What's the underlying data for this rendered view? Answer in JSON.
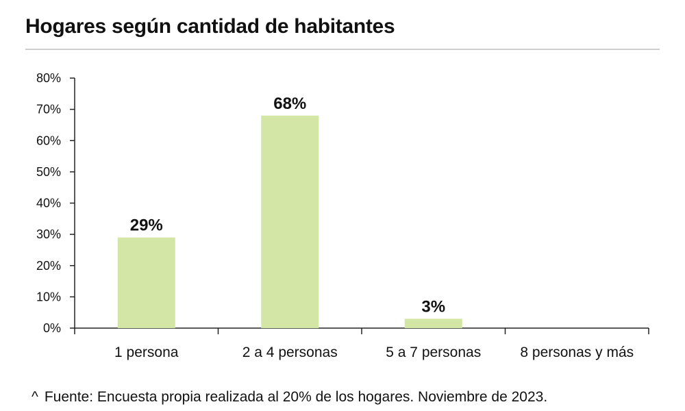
{
  "title": "Hogares según cantidad de habitantes",
  "footnote": {
    "marker": "^",
    "text": "Fuente: Encuesta propia realizada al 20% de los hogares. Noviembre de 2023."
  },
  "colors": {
    "bar": "#d4e6a5",
    "axis": "#222222",
    "rule": "#cfcfcf"
  },
  "chart_data": {
    "type": "bar",
    "categories": [
      "1 persona",
      "2 a 4 personas",
      "5 a 7 personas",
      "8 personas y más"
    ],
    "values": [
      29,
      68,
      3,
      0
    ],
    "data_labels": [
      "29%",
      "68%",
      "3%",
      ""
    ],
    "ylim": [
      0,
      80
    ],
    "yticks": [
      0,
      10,
      20,
      30,
      40,
      50,
      60,
      70,
      80
    ],
    "ytick_labels": [
      "0%",
      "10%",
      "20%",
      "30%",
      "40%",
      "50%",
      "60%",
      "70%",
      "80%"
    ],
    "grid": false,
    "legend": "none"
  }
}
